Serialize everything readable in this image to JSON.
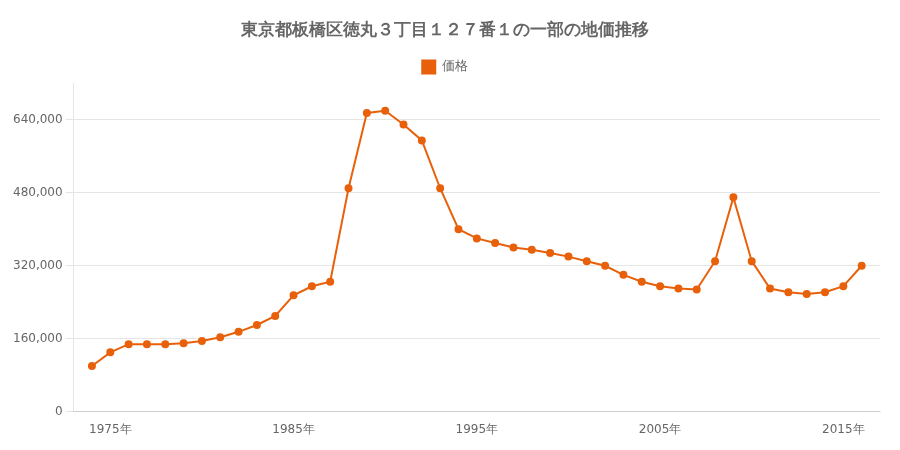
{
  "chart_data": {
    "type": "line",
    "title": "東京都板橋区徳丸３丁目１２７番１の一部の地価推移",
    "x": [
      1974,
      1975,
      1976,
      1977,
      1978,
      1979,
      1980,
      1981,
      1982,
      1983,
      1984,
      1985,
      1986,
      1987,
      1988,
      1989,
      1990,
      1991,
      1992,
      1993,
      1994,
      1995,
      1996,
      1997,
      1998,
      1999,
      2000,
      2001,
      2002,
      2003,
      2004,
      2005,
      2006,
      2007,
      2008,
      2009,
      2010,
      2011,
      2012,
      2013,
      2014,
      2015,
      2016
    ],
    "series": [
      {
        "name": "価格",
        "color": "#E8610A",
        "marker": "circle",
        "line_style": "solid",
        "values": [
          100000,
          130000,
          148000,
          148000,
          148000,
          150000,
          155000,
          163000,
          175000,
          190000,
          210000,
          255000,
          275000,
          285000,
          490000,
          655000,
          660000,
          630000,
          595000,
          490000,
          400000,
          380000,
          370000,
          360000,
          355000,
          348000,
          340000,
          330000,
          320000,
          300000,
          285000,
          275000,
          270000,
          268000,
          330000,
          470000,
          330000,
          270000,
          262000,
          258000,
          262000,
          275000,
          320000
        ]
      }
    ],
    "xlim": [
      1973,
      2017
    ],
    "xticks": [
      {
        "value": 1975,
        "label": "1975年"
      },
      {
        "value": 1985,
        "label": "1985年"
      },
      {
        "value": 1995,
        "label": "1995年"
      },
      {
        "value": 2005,
        "label": "2005年"
      },
      {
        "value": 2015,
        "label": "2015年"
      }
    ],
    "ylim": [
      0,
      720000
    ],
    "yticks": [
      0,
      {
        "value": 160000,
        "label": "160,000"
      },
      {
        "value": 320000,
        "label": "320,000"
      },
      {
        "value": 480000,
        "label": "480,000"
      },
      {
        "value": 640000,
        "label": "640,000"
      }
    ],
    "grid": "y",
    "legend": "top"
  }
}
